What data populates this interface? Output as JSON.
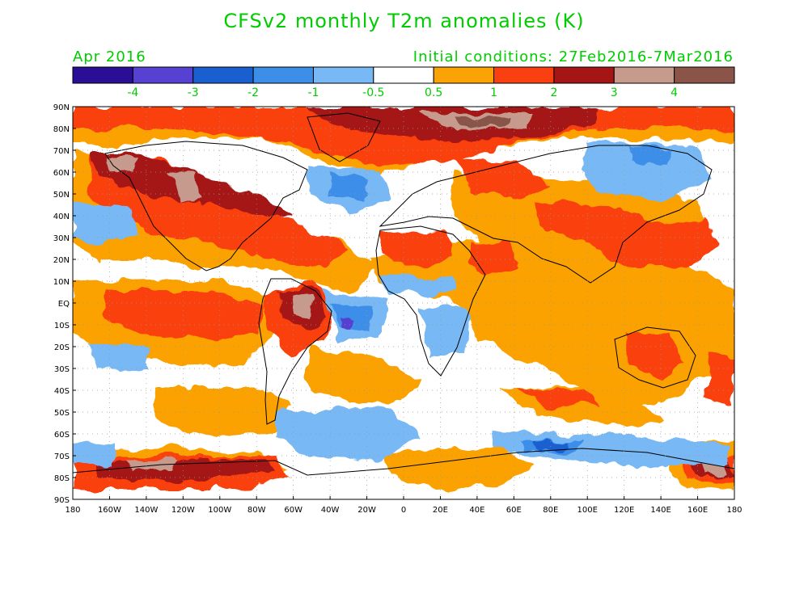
{
  "title": "CFSv2 monthly T2m anomalies (K)",
  "subtitle_left": "Apr 2016",
  "subtitle_right": "Initial conditions: 27Feb2016-7Mar2016",
  "text_color": "#00cc00",
  "colorbar": {
    "colors": [
      "#2a0e96",
      "#5641d2",
      "#1a5fcf",
      "#3c8ee8",
      "#78b8f4",
      "#ffffff",
      "#fba205",
      "#fa4010",
      "#a51515",
      "#c79a8e",
      "#8a5448"
    ],
    "labels": [
      "-4",
      "-3",
      "-2",
      "-1",
      "-0.5",
      "0.5",
      "1",
      "2",
      "3",
      "4"
    ]
  },
  "map": {
    "y_labels": [
      "90N",
      "80N",
      "70N",
      "60N",
      "50N",
      "40N",
      "30N",
      "20N",
      "10N",
      "EQ",
      "10S",
      "20S",
      "30S",
      "40S",
      "50S",
      "60S",
      "70S",
      "80S",
      "90S"
    ],
    "x_labels": [
      "180",
      "160W",
      "140W",
      "120W",
      "100W",
      "80W",
      "60W",
      "40W",
      "20W",
      "0",
      "20E",
      "40E",
      "60E",
      "80E",
      "100E",
      "120E",
      "140E",
      "160E",
      "180"
    ]
  }
}
